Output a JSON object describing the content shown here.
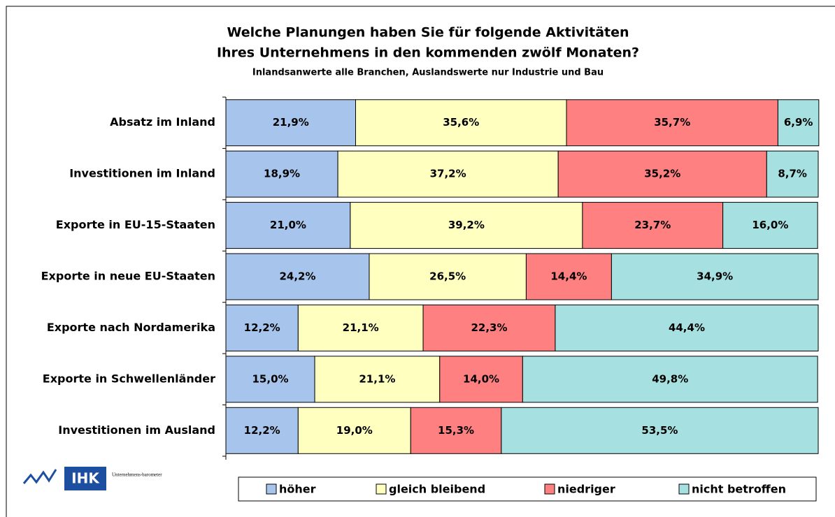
{
  "chart_data": {
    "type": "stacked-bar-horizontal",
    "title": [
      "Welche Planungen haben Sie für folgende Aktivitäten",
      "Ihres Unternehmens in den kommenden zwölf Monaten?"
    ],
    "subtitle": "Inlandsanwerte alle Branchen, Auslandswerte nur Industrie und Bau",
    "categories": [
      "Absatz im Inland",
      "Investitionen im Inland",
      "Exporte in EU-15-Staaten",
      "Exporte in neue EU-Staaten",
      "Exporte nach Nordamerika",
      "Exporte in Schwellenländer",
      "Investitionen im Ausland"
    ],
    "xlim": [
      0,
      100
    ],
    "series": [
      {
        "name": "höher",
        "color": "#a7c5ec",
        "values": [
          21.9,
          18.9,
          21.0,
          24.2,
          12.2,
          15.0,
          12.2
        ],
        "value_labels": [
          "21,9%",
          "18,9%",
          "21,0%",
          "24,2%",
          "12,2%",
          "15,0%",
          "12,2%"
        ]
      },
      {
        "name": "gleich bleibend",
        "color": "#ffffc0",
        "values": [
          35.6,
          37.2,
          39.2,
          26.5,
          21.1,
          21.1,
          19.0
        ],
        "value_labels": [
          "35,6%",
          "37,2%",
          "39,2%",
          "26,5%",
          "21,1%",
          "21,1%",
          "19,0%"
        ]
      },
      {
        "name": "niedriger",
        "color": "#ff8080",
        "values": [
          35.7,
          35.2,
          23.7,
          14.4,
          22.3,
          14.0,
          15.3
        ],
        "value_labels": [
          "35,7%",
          "35,2%",
          "23,7%",
          "14,4%",
          "22,3%",
          "14,0%",
          "15,3%"
        ]
      },
      {
        "name": "nicht betroffen",
        "color": "#a6e0e0",
        "values": [
          6.9,
          8.7,
          16.0,
          34.9,
          44.4,
          49.8,
          53.5
        ],
        "value_labels": [
          "6,9%",
          "8,7%",
          "16,0%",
          "34,9%",
          "44,4%",
          "49,8%",
          "53,5%"
        ]
      }
    ]
  },
  "logo": {
    "text": "IHK",
    "caption": "Unternehmens-barometer"
  }
}
